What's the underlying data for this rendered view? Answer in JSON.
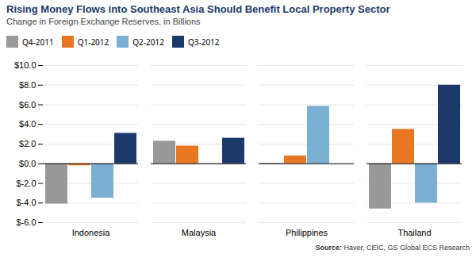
{
  "chart_data": {
    "type": "bar",
    "title": "Rising Money Flows into Southeast Asia Should Benefit Local Property Sector",
    "subtitle": "Change in Foreign Exchange Reserves, in Billions",
    "source": "Source: Haver, CEIC, GS Global ECS Research",
    "categories": [
      "Indonesia",
      "Malaysia",
      "Philippines",
      "Thailand"
    ],
    "series": [
      {
        "name": "Q4-2011",
        "color": "#999999",
        "values": [
          -4.1,
          2.3,
          0.05,
          -4.6
        ]
      },
      {
        "name": "Q1-2012",
        "color": "#E87722",
        "values": [
          -0.2,
          1.8,
          0.8,
          3.5
        ]
      },
      {
        "name": "Q2-2012",
        "color": "#7BAFD4",
        "values": [
          -3.5,
          -0.05,
          5.85,
          -4.0
        ]
      },
      {
        "name": "Q3-2012",
        "color": "#1B3A6B",
        "values": [
          3.1,
          2.6,
          0.0,
          8.0
        ]
      }
    ],
    "ylim": [
      -6.0,
      10.0
    ],
    "yticks": [
      {
        "value": -6.0,
        "label": "$-6.0"
      },
      {
        "value": -4.0,
        "label": "$-4.0"
      },
      {
        "value": -2.0,
        "label": "$-2.0"
      },
      {
        "value": 0.0,
        "label": "$0.0"
      },
      {
        "value": 2.0,
        "label": "$2.0"
      },
      {
        "value": 4.0,
        "label": "$4.0"
      },
      {
        "value": 6.0,
        "label": "$6.0"
      },
      {
        "value": 8.0,
        "label": "$8.0"
      },
      {
        "value": 10.0,
        "label": "$10.0"
      }
    ],
    "grid": true,
    "legend": "upper left"
  }
}
